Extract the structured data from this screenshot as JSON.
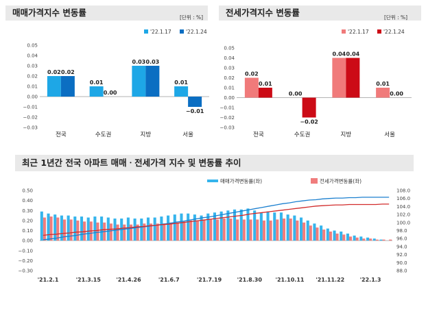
{
  "chart_data": [
    {
      "type": "bar",
      "title": "매매가격지수 변동률",
      "unit": "[단위 : %]",
      "categories": [
        "전국",
        "수도권",
        "지방",
        "서울"
      ],
      "series": [
        {
          "name": "'22.1.17",
          "values": [
            0.02,
            0.01,
            0.03,
            0.01
          ],
          "labels": [
            "0.02",
            "0.01",
            "0.03",
            "0.01"
          ],
          "color": "#1ea7e6"
        },
        {
          "name": "'22.1.24",
          "values": [
            0.02,
            0.0,
            0.03,
            -0.01
          ],
          "labels": [
            "0.02",
            "0.00",
            "0.03",
            "−0.01"
          ],
          "color": "#0b6ec2"
        }
      ],
      "ylim": [
        -0.03,
        0.05
      ],
      "yticks": [
        "0.05",
        "0.04",
        "0.03",
        "0.02",
        "0.01",
        "0.00",
        "−0.01",
        "−0.02",
        "−0.03"
      ],
      "legend": "top-right"
    },
    {
      "type": "bar",
      "title": "전세가격지수 변동률",
      "unit": "[단위 : %]",
      "categories": [
        "전국",
        "수도권",
        "지방",
        "서울"
      ],
      "series": [
        {
          "name": "'22.1.17",
          "values": [
            0.02,
            0.0,
            0.04,
            0.01
          ],
          "labels": [
            "0.02",
            "0.00",
            "0.04",
            "0.01"
          ],
          "color": "#f07a7a"
        },
        {
          "name": "'22.1.24",
          "values": [
            0.01,
            -0.02,
            0.04,
            0.0
          ],
          "labels": [
            "0.01",
            "−0.02",
            "0.04",
            "0.00"
          ],
          "color": "#cc0b16"
        }
      ],
      "ylim": [
        -0.03,
        0.05
      ],
      "yticks": [
        "0.05",
        "0.04",
        "0.03",
        "0.02",
        "0.01",
        "0.00",
        "−0.01",
        "−0.02",
        "−0.03"
      ],
      "legend": "top-right"
    },
    {
      "type": "bar+line",
      "title": "최근 1년간 전국 아파트 매매ㆍ전세가격 지수 및 변동률 추이",
      "legend_labels": [
        "매매가격변동률(좌)",
        "전세가격변동률(좌)"
      ],
      "legend": "top",
      "x_tick_labels": [
        "'21.2.1",
        "'21.3.15",
        "'21.4.26",
        "'21.6.7",
        "'21.7.19",
        "'21.8.30",
        "'21.10.11",
        "'21.11.22",
        "'22.1.3"
      ],
      "y_left": {
        "range": [
          -0.3,
          0.5
        ],
        "ticks": [
          "0.50",
          "0.40",
          "0.30",
          "0.20",
          "0.10",
          "0.00",
          "−0.10",
          "−0.20",
          "−0.30"
        ]
      },
      "y_right": {
        "range": [
          88.0,
          108.0
        ],
        "ticks": [
          "108.0",
          "106.0",
          "104.0",
          "102.0",
          "100.0",
          "98.0",
          "96.0",
          "94.0",
          "92.0",
          "90.0",
          "88.0"
        ]
      },
      "sale_change": [
        0.29,
        0.27,
        0.26,
        0.25,
        0.25,
        0.24,
        0.24,
        0.23,
        0.24,
        0.24,
        0.23,
        0.22,
        0.22,
        0.23,
        0.22,
        0.22,
        0.23,
        0.23,
        0.24,
        0.25,
        0.26,
        0.27,
        0.27,
        0.26,
        0.25,
        0.27,
        0.28,
        0.29,
        0.3,
        0.31,
        0.31,
        0.32,
        0.3,
        0.28,
        0.29,
        0.28,
        0.28,
        0.26,
        0.25,
        0.23,
        0.2,
        0.17,
        0.15,
        0.12,
        0.1,
        0.09,
        0.07,
        0.05,
        0.04,
        0.03,
        0.02,
        0.01,
        0.0
      ],
      "jeonse_change": [
        0.23,
        0.24,
        0.23,
        0.21,
        0.21,
        0.2,
        0.19,
        0.19,
        0.18,
        0.18,
        0.17,
        0.16,
        0.16,
        0.16,
        0.16,
        0.17,
        0.17,
        0.17,
        0.17,
        0.18,
        0.18,
        0.19,
        0.2,
        0.2,
        0.21,
        0.21,
        0.21,
        0.22,
        0.22,
        0.21,
        0.21,
        0.21,
        0.21,
        0.2,
        0.2,
        0.21,
        0.22,
        0.22,
        0.2,
        0.18,
        0.15,
        0.13,
        0.11,
        0.09,
        0.07,
        0.06,
        0.04,
        0.03,
        0.02,
        0.02,
        0.01,
        0.01,
        0.01
      ],
      "sale_index": [
        95.7,
        95.9,
        96.1,
        96.4,
        96.6,
        96.8,
        97.1,
        97.3,
        97.5,
        97.7,
        97.9,
        98.1,
        98.3,
        98.5,
        98.7,
        98.9,
        99.1,
        99.3,
        99.6,
        99.8,
        100.1,
        100.3,
        100.6,
        100.9,
        101.2,
        101.4,
        101.7,
        102.0,
        102.3,
        102.6,
        102.9,
        103.2,
        103.5,
        103.8,
        104.1,
        104.4,
        104.7,
        104.9,
        105.2,
        105.4,
        105.6,
        105.7,
        105.9,
        106.0,
        106.1,
        106.1,
        106.2,
        106.2,
        106.3,
        106.3,
        106.3,
        106.3,
        106.3
      ],
      "jeonse_index": [
        96.8,
        97.0,
        97.1,
        97.3,
        97.4,
        97.6,
        97.7,
        97.9,
        98.0,
        98.2,
        98.3,
        98.4,
        98.6,
        98.7,
        98.9,
        99.0,
        99.2,
        99.3,
        99.5,
        99.6,
        99.8,
        100.0,
        100.2,
        100.4,
        100.6,
        100.8,
        101.0,
        101.2,
        101.4,
        101.6,
        101.8,
        102.1,
        102.3,
        102.5,
        102.7,
        102.9,
        103.1,
        103.3,
        103.5,
        103.7,
        103.9,
        104.1,
        104.2,
        104.3,
        104.4,
        104.4,
        104.5,
        104.5,
        104.5,
        104.5,
        104.5,
        104.6,
        104.6
      ]
    }
  ]
}
